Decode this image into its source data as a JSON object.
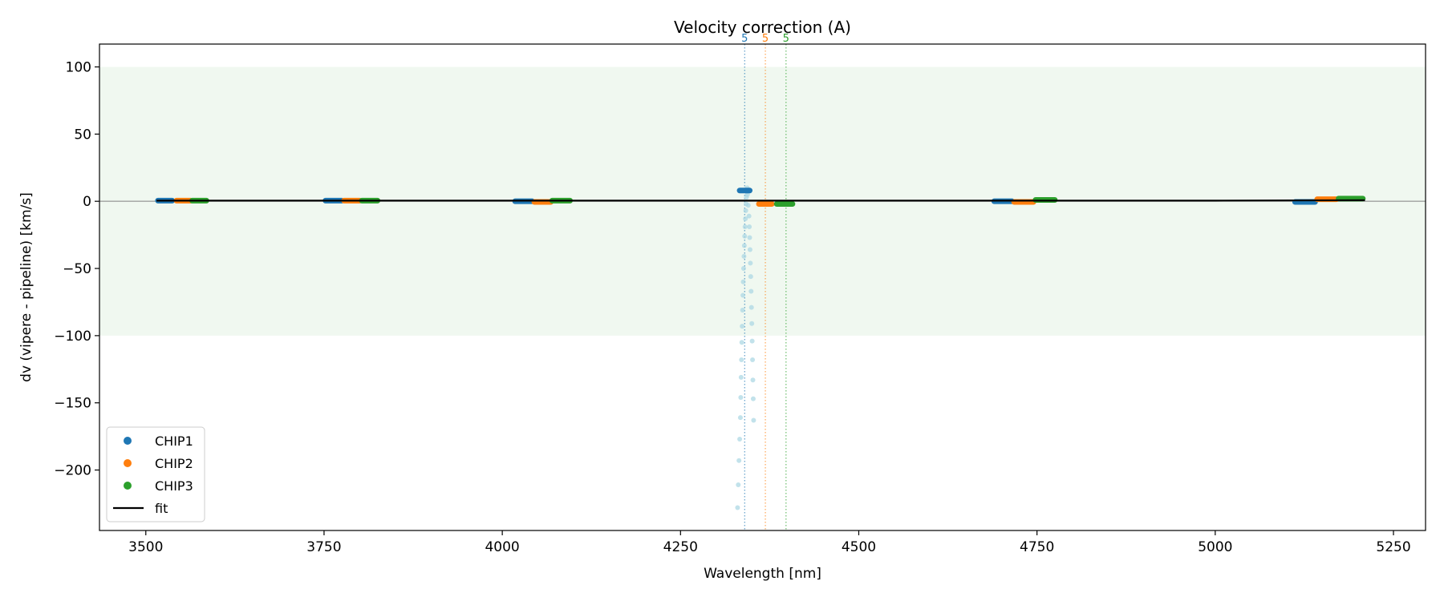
{
  "chart_data": {
    "type": "scatter",
    "title": "Velocity correction (A)",
    "xlabel": "Wavelength [nm]",
    "ylabel": "dv (vipere - pipeline) [km/s]",
    "xlim": [
      3435,
      5295
    ],
    "ylim": [
      -245,
      117
    ],
    "xticks": [
      3500,
      3750,
      4000,
      4250,
      4500,
      4750,
      5000,
      5250
    ],
    "yticks": [
      100,
      50,
      0,
      -50,
      -100,
      -150,
      -200
    ],
    "band": [
      -100,
      100
    ],
    "band_color": "#f0f8f0",
    "zero_line": 0,
    "grid": false,
    "legend_position": "lower-left",
    "legend": [
      {
        "label": "CHIP1",
        "kind": "marker",
        "color": "#1f77b4"
      },
      {
        "label": "CHIP2",
        "kind": "marker",
        "color": "#ff7f0e"
      },
      {
        "label": "CHIP3",
        "kind": "marker",
        "color": "#2ca02c"
      },
      {
        "label": "fit",
        "kind": "line",
        "color": "#000000"
      }
    ],
    "series": [
      {
        "name": "CHIP1",
        "color": "#1f77b4",
        "segments": [
          {
            "x0": 3517,
            "x1": 3537,
            "y": 0.5
          },
          {
            "x0": 3752,
            "x1": 3775,
            "y": 0.5
          },
          {
            "x0": 4018,
            "x1": 4042,
            "y": 0.0
          },
          {
            "x0": 4333,
            "x1": 4347,
            "y": 8.0
          },
          {
            "x0": 4690,
            "x1": 4715,
            "y": 0.0
          },
          {
            "x0": 5112,
            "x1": 5140,
            "y": -0.5
          }
        ]
      },
      {
        "name": "CHIP2",
        "color": "#ff7f0e",
        "segments": [
          {
            "x0": 3543,
            "x1": 3563,
            "y": 0.5
          },
          {
            "x0": 3778,
            "x1": 3800,
            "y": 0.5
          },
          {
            "x0": 4045,
            "x1": 4068,
            "y": -0.5
          },
          {
            "x0": 4360,
            "x1": 4378,
            "y": -2.0
          },
          {
            "x0": 4718,
            "x1": 4745,
            "y": -0.5
          },
          {
            "x0": 5143,
            "x1": 5170,
            "y": 1.5
          }
        ]
      },
      {
        "name": "CHIP3",
        "color": "#2ca02c",
        "segments": [
          {
            "x0": 3565,
            "x1": 3585,
            "y": 0.5
          },
          {
            "x0": 3803,
            "x1": 3825,
            "y": 0.5
          },
          {
            "x0": 4070,
            "x1": 4095,
            "y": 0.5
          },
          {
            "x0": 4385,
            "x1": 4407,
            "y": -2.0
          },
          {
            "x0": 4748,
            "x1": 4775,
            "y": 1.0
          },
          {
            "x0": 5173,
            "x1": 5207,
            "y": 2.0
          }
        ]
      }
    ],
    "outliers": {
      "color": "#a8d5e2",
      "points": [
        [
          4330,
          -228
        ],
        [
          4331,
          -211
        ],
        [
          4332,
          -193
        ],
        [
          4333,
          -177
        ],
        [
          4334,
          -161
        ],
        [
          4334.5,
          -146
        ],
        [
          4335,
          -131
        ],
        [
          4335.5,
          -118
        ],
        [
          4336,
          -105
        ],
        [
          4336.5,
          -93
        ],
        [
          4337,
          -81
        ],
        [
          4337.5,
          -70
        ],
        [
          4338,
          -60
        ],
        [
          4338.5,
          -50
        ],
        [
          4339,
          -41
        ],
        [
          4339.5,
          -33
        ],
        [
          4340,
          -26
        ],
        [
          4340.5,
          -19
        ],
        [
          4341,
          -13
        ],
        [
          4341.5,
          -7
        ],
        [
          4342,
          -2
        ],
        [
          4342.5,
          3
        ],
        [
          4343,
          7
        ],
        [
          4343.5,
          10
        ],
        [
          4344,
          5
        ],
        [
          4345,
          -3
        ],
        [
          4346,
          -11
        ],
        [
          4346.5,
          -19
        ],
        [
          4347,
          -27
        ],
        [
          4347.5,
          -36
        ],
        [
          4348,
          -46
        ],
        [
          4348.5,
          -56
        ],
        [
          4349,
          -67
        ],
        [
          4349.5,
          -79
        ],
        [
          4350,
          -91
        ],
        [
          4350.5,
          -104
        ],
        [
          4351,
          -118
        ],
        [
          4351.5,
          -133
        ],
        [
          4352,
          -147
        ],
        [
          4352.5,
          -163
        ]
      ]
    },
    "fit": {
      "color": "#000000",
      "x": [
        3515,
        4000,
        4500,
        5000,
        5210
      ],
      "y": [
        0.5,
        0.5,
        0.5,
        0.5,
        0.8
      ]
    },
    "vlines": [
      {
        "x": 4340,
        "color": "#1f77b4",
        "label": "5"
      },
      {
        "x": 4369,
        "color": "#ff7f0e",
        "label": "5"
      },
      {
        "x": 4398,
        "color": "#2ca02c",
        "label": "5"
      }
    ]
  }
}
